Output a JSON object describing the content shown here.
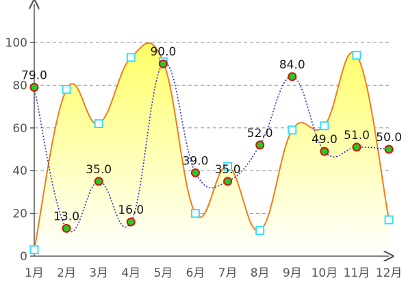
{
  "chart_data": {
    "type": "line",
    "title": "",
    "xlabel": "",
    "ylabel": "",
    "categories": [
      "1月",
      "2月",
      "3月",
      "4月",
      "5月",
      "6月",
      "7月",
      "8月",
      "9月",
      "10月",
      "11月",
      "12月"
    ],
    "ylim": [
      0,
      115
    ],
    "yticks": [
      0,
      20,
      40,
      60,
      80,
      100
    ],
    "ytick_labels": [
      "0",
      "20",
      "40",
      "60",
      "80",
      "100"
    ],
    "grid": "horizontal-dashed",
    "series": [
      {
        "name": "area-series",
        "style": "smooth-area",
        "line_color": "#f07d1a",
        "fill_top_color": "#ffff66",
        "fill_bottom_color": "#ffffff",
        "marker": "square",
        "marker_color": "#33e0ff",
        "values": [
          3,
          78,
          62,
          93,
          91,
          20,
          42,
          12,
          59,
          61,
          94,
          17
        ]
      },
      {
        "name": "dotted-series",
        "style": "dotted-line",
        "line_color": "#2a2ad6",
        "marker": "circle",
        "marker_fill": "#22cc22",
        "marker_stroke": "#d81111",
        "values": [
          79,
          13,
          35,
          16,
          90,
          39,
          35,
          52,
          84,
          49,
          51,
          50
        ],
        "data_labels": [
          "79.0",
          "13.0",
          "35.0",
          "16.0",
          "90.0",
          "39.0",
          "35.0",
          "52.0",
          "84.0",
          "49.0",
          "51.0",
          "50.0"
        ]
      }
    ]
  }
}
